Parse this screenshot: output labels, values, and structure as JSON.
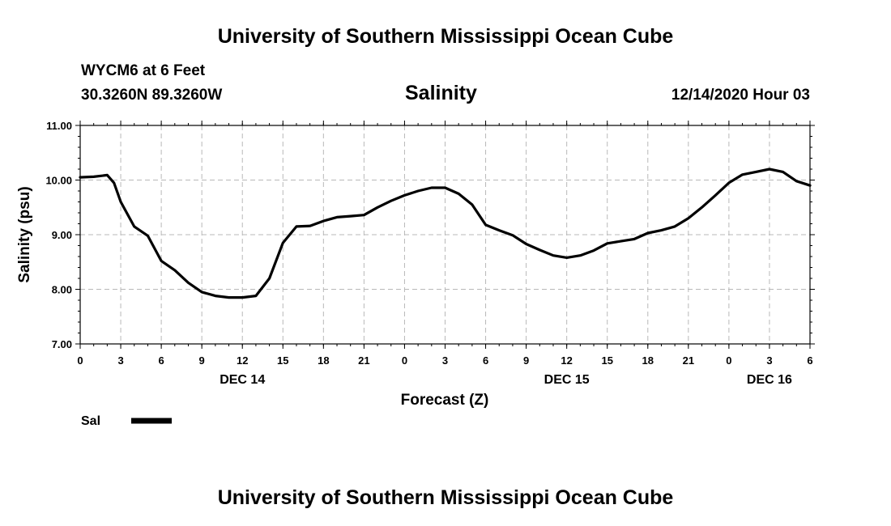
{
  "header": {
    "top_title": "University of Southern Mississippi Ocean Cube",
    "bottom_title": "University of Southern Mississippi Ocean Cube",
    "station": "WYCM6 at 6 Feet",
    "location": "30.3260N 89.3260W",
    "timestamp": "12/14/2020 Hour 03"
  },
  "chart_data": {
    "type": "line",
    "title": "Salinity",
    "xlabel": "Forecast (Z)",
    "ylabel": "Salinity (psu)",
    "ylim": [
      7.0,
      11.0
    ],
    "xlim": [
      0,
      54
    ],
    "yticks": [
      "7.00",
      "8.00",
      "9.00",
      "10.00",
      "11.00"
    ],
    "xtick_labels": [
      "0",
      "3",
      "6",
      "9",
      "12",
      "15",
      "18",
      "21",
      "0",
      "3",
      "6",
      "9",
      "12",
      "15",
      "18",
      "21",
      "0",
      "3",
      "6"
    ],
    "day_labels": [
      {
        "label": "DEC 14",
        "at_hour": 12
      },
      {
        "label": "DEC 15",
        "at_hour": 36
      },
      {
        "label": "DEC 16",
        "at_hour": 51
      }
    ],
    "grid": true,
    "legend": "bottom-left",
    "series": [
      {
        "name": "Sal",
        "color": "#000000",
        "x": [
          0,
          1,
          2,
          2.5,
          3,
          4,
          5,
          6,
          7,
          8,
          9,
          10,
          11,
          12,
          13,
          14,
          15,
          16,
          17,
          18,
          19,
          20,
          21,
          22,
          23,
          24,
          25,
          26,
          27,
          28,
          29,
          30,
          31,
          32,
          33,
          34,
          35,
          36,
          37,
          38,
          39,
          40,
          41,
          42,
          43,
          44,
          45,
          46,
          47,
          48,
          49,
          50,
          51,
          52,
          53,
          54
        ],
        "values": [
          10.05,
          10.06,
          10.09,
          9.95,
          9.6,
          9.15,
          8.98,
          8.52,
          8.35,
          8.12,
          7.95,
          7.88,
          7.85,
          7.85,
          7.88,
          8.2,
          8.85,
          9.15,
          9.16,
          9.25,
          9.32,
          9.34,
          9.36,
          9.5,
          9.62,
          9.72,
          9.8,
          9.86,
          9.86,
          9.75,
          9.55,
          9.18,
          9.08,
          8.99,
          8.83,
          8.72,
          8.62,
          8.58,
          8.62,
          8.71,
          8.84,
          8.88,
          8.92,
          9.03,
          9.08,
          9.15,
          9.3,
          9.5,
          9.72,
          9.95,
          10.1,
          10.15,
          10.2,
          10.15,
          9.98,
          9.9
        ]
      }
    ]
  }
}
